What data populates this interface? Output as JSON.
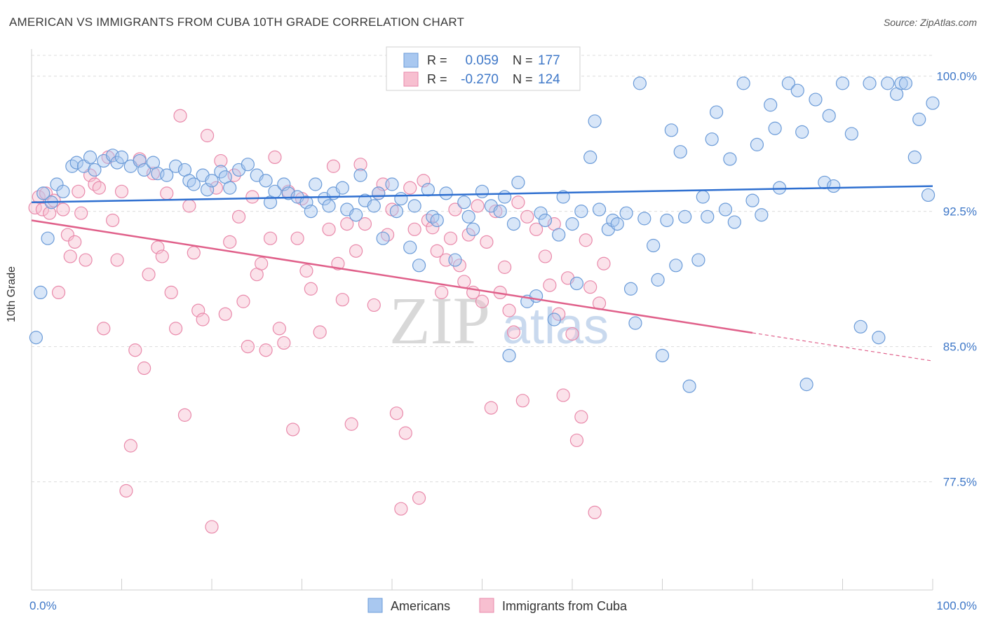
{
  "header": {
    "title": "AMERICAN VS IMMIGRANTS FROM CUBA 10TH GRADE CORRELATION CHART",
    "source": "Source: ZipAtlas.com"
  },
  "watermark": {
    "zip": "ZIP",
    "atlas": "atlas"
  },
  "colors": {
    "blue_fill": "#a9c8f0",
    "blue_stroke": "#6b9bd8",
    "blue_line": "#2e6fd0",
    "pink_fill": "#f7bfd0",
    "pink_stroke": "#e98aab",
    "pink_line": "#e0608a",
    "tick_text": "#3f78c8",
    "grid": "#dcdcdc"
  },
  "chart_data": {
    "type": "scatter",
    "title": "AMERICAN VS IMMIGRANTS FROM CUBA 10TH GRADE CORRELATION CHART",
    "ylabel": "10th Grade",
    "xlabel": "",
    "xlim": [
      0,
      100
    ],
    "ylim": [
      71.5,
      101.5
    ],
    "x_tick_labels": [
      "0.0%",
      "100.0%"
    ],
    "y_ticks": [
      77.5,
      85.0,
      92.5,
      100.0
    ],
    "y_tick_labels": [
      "77.5%",
      "85.0%",
      "92.5%",
      "100.0%"
    ],
    "grid": true,
    "legend_placement": "top-center",
    "stats": [
      {
        "r_label": "R =",
        "r_value": "0.059",
        "n_label": "N =",
        "n_value": "177"
      },
      {
        "r_label": "R =",
        "r_value": "-0.270",
        "n_label": "N =",
        "n_value": "124"
      }
    ],
    "series": [
      {
        "name": "Americans",
        "trend": {
          "x": [
            0,
            100
          ],
          "y": [
            93.0,
            93.9
          ]
        },
        "points": [
          [
            0.5,
            85.5
          ],
          [
            1.0,
            88.0
          ],
          [
            1.3,
            93.5
          ],
          [
            1.8,
            91.0
          ],
          [
            2.2,
            93.0
          ],
          [
            2.8,
            94.0
          ],
          [
            3.5,
            93.6
          ],
          [
            4.5,
            95.0
          ],
          [
            5.0,
            95.2
          ],
          [
            5.8,
            95.0
          ],
          [
            6.5,
            95.5
          ],
          [
            7.0,
            94.8
          ],
          [
            8.0,
            95.3
          ],
          [
            9.0,
            95.6
          ],
          [
            9.5,
            95.2
          ],
          [
            10.0,
            95.5
          ],
          [
            11.0,
            95.0
          ],
          [
            12.0,
            95.3
          ],
          [
            12.5,
            94.8
          ],
          [
            13.5,
            95.2
          ],
          [
            14.0,
            94.6
          ],
          [
            15.0,
            94.5
          ],
          [
            16.0,
            95.0
          ],
          [
            17.0,
            94.8
          ],
          [
            17.5,
            94.2
          ],
          [
            18.0,
            94.0
          ],
          [
            19.0,
            94.5
          ],
          [
            19.5,
            93.7
          ],
          [
            20.0,
            94.2
          ],
          [
            21.0,
            94.7
          ],
          [
            21.5,
            94.4
          ],
          [
            22.0,
            93.8
          ],
          [
            23.0,
            94.8
          ],
          [
            24.0,
            95.1
          ],
          [
            25.0,
            94.5
          ],
          [
            26.0,
            94.2
          ],
          [
            26.5,
            93.0
          ],
          [
            27.0,
            93.6
          ],
          [
            28.0,
            94.0
          ],
          [
            28.5,
            93.5
          ],
          [
            29.5,
            93.3
          ],
          [
            30.5,
            93.0
          ],
          [
            31.0,
            92.5
          ],
          [
            31.5,
            94.0
          ],
          [
            32.5,
            93.2
          ],
          [
            33.0,
            92.8
          ],
          [
            33.5,
            93.5
          ],
          [
            34.5,
            93.8
          ],
          [
            35.0,
            92.6
          ],
          [
            36.0,
            92.3
          ],
          [
            36.5,
            94.5
          ],
          [
            37.0,
            93.1
          ],
          [
            38.0,
            92.8
          ],
          [
            38.5,
            93.5
          ],
          [
            39.0,
            91.0
          ],
          [
            40.0,
            94.0
          ],
          [
            40.5,
            92.5
          ],
          [
            41.0,
            93.2
          ],
          [
            42.0,
            90.5
          ],
          [
            42.5,
            92.8
          ],
          [
            43.0,
            89.5
          ],
          [
            44.0,
            93.7
          ],
          [
            44.5,
            92.2
          ],
          [
            45.0,
            92.0
          ],
          [
            46.0,
            93.5
          ],
          [
            47.0,
            89.8
          ],
          [
            48.0,
            93.0
          ],
          [
            48.5,
            92.2
          ],
          [
            49.0,
            91.5
          ],
          [
            50.0,
            93.6
          ],
          [
            51.0,
            92.8
          ],
          [
            52.0,
            92.5
          ],
          [
            52.5,
            93.3
          ],
          [
            53.0,
            84.5
          ],
          [
            53.5,
            91.8
          ],
          [
            54.0,
            94.1
          ],
          [
            55.0,
            87.5
          ],
          [
            56.0,
            87.8
          ],
          [
            56.5,
            92.4
          ],
          [
            57.0,
            92.0
          ],
          [
            58.0,
            86.5
          ],
          [
            58.5,
            91.2
          ],
          [
            59.0,
            93.3
          ],
          [
            60.0,
            91.8
          ],
          [
            60.5,
            88.5
          ],
          [
            61.0,
            92.5
          ],
          [
            62.0,
            95.5
          ],
          [
            62.5,
            97.5
          ],
          [
            63.0,
            92.6
          ],
          [
            64.0,
            91.5
          ],
          [
            64.5,
            92.0
          ],
          [
            65.0,
            91.8
          ],
          [
            66.0,
            92.4
          ],
          [
            66.5,
            88.2
          ],
          [
            67.0,
            86.3
          ],
          [
            67.5,
            99.6
          ],
          [
            68.0,
            92.1
          ],
          [
            69.0,
            90.6
          ],
          [
            69.5,
            88.7
          ],
          [
            70.0,
            84.5
          ],
          [
            70.5,
            92.0
          ],
          [
            71.0,
            97.0
          ],
          [
            71.5,
            89.5
          ],
          [
            72.0,
            95.8
          ],
          [
            72.5,
            92.2
          ],
          [
            73.0,
            82.8
          ],
          [
            74.0,
            89.8
          ],
          [
            74.5,
            93.3
          ],
          [
            75.0,
            92.2
          ],
          [
            75.5,
            96.5
          ],
          [
            76.0,
            98.0
          ],
          [
            77.0,
            92.6
          ],
          [
            77.5,
            95.4
          ],
          [
            78.0,
            91.9
          ],
          [
            79.0,
            99.6
          ],
          [
            80.0,
            93.1
          ],
          [
            80.5,
            96.2
          ],
          [
            81.0,
            92.3
          ],
          [
            82.0,
            98.4
          ],
          [
            82.5,
            97.1
          ],
          [
            83.0,
            93.8
          ],
          [
            84.0,
            99.6
          ],
          [
            85.0,
            99.2
          ],
          [
            85.5,
            96.9
          ],
          [
            86.0,
            82.9
          ],
          [
            87.0,
            98.7
          ],
          [
            88.0,
            94.1
          ],
          [
            88.5,
            97.8
          ],
          [
            89.0,
            93.9
          ],
          [
            90.0,
            99.6
          ],
          [
            91.0,
            96.8
          ],
          [
            92.0,
            86.1
          ],
          [
            93.0,
            99.6
          ],
          [
            94.0,
            85.5
          ],
          [
            95.0,
            99.6
          ],
          [
            96.0,
            99.0
          ],
          [
            96.5,
            99.6
          ],
          [
            97.0,
            99.6
          ],
          [
            98.0,
            95.5
          ],
          [
            98.5,
            97.6
          ],
          [
            99.5,
            93.4
          ],
          [
            100.0,
            98.5
          ]
        ]
      },
      {
        "name": "Immigrants from Cuba",
        "trend": {
          "x": [
            0,
            100
          ],
          "y": [
            92.0,
            84.2
          ]
        },
        "points": [
          [
            0.4,
            92.7
          ],
          [
            0.8,
            93.3
          ],
          [
            1.2,
            92.6
          ],
          [
            1.6,
            93.5
          ],
          [
            2.0,
            92.4
          ],
          [
            2.5,
            93.1
          ],
          [
            3.0,
            88.0
          ],
          [
            3.5,
            92.6
          ],
          [
            4.0,
            91.2
          ],
          [
            4.3,
            90.0
          ],
          [
            4.8,
            90.8
          ],
          [
            5.2,
            93.6
          ],
          [
            5.5,
            92.4
          ],
          [
            6.0,
            89.8
          ],
          [
            6.5,
            94.5
          ],
          [
            7.0,
            94.0
          ],
          [
            7.5,
            93.8
          ],
          [
            8.0,
            86.0
          ],
          [
            8.5,
            95.5
          ],
          [
            9.0,
            92.0
          ],
          [
            9.5,
            89.8
          ],
          [
            10.0,
            93.6
          ],
          [
            10.5,
            77.0
          ],
          [
            11.0,
            79.5
          ],
          [
            11.5,
            84.8
          ],
          [
            12.0,
            95.4
          ],
          [
            12.5,
            83.8
          ],
          [
            13.0,
            89.0
          ],
          [
            13.5,
            94.6
          ],
          [
            14.0,
            90.5
          ],
          [
            14.5,
            90.0
          ],
          [
            15.0,
            93.5
          ],
          [
            15.5,
            88.0
          ],
          [
            16.0,
            86.0
          ],
          [
            16.5,
            97.8
          ],
          [
            17.0,
            81.2
          ],
          [
            17.5,
            92.8
          ],
          [
            18.0,
            90.2
          ],
          [
            18.5,
            87.0
          ],
          [
            19.0,
            86.5
          ],
          [
            19.5,
            96.7
          ],
          [
            20.0,
            75.0
          ],
          [
            20.5,
            93.8
          ],
          [
            21.0,
            95.3
          ],
          [
            21.5,
            86.8
          ],
          [
            22.0,
            90.8
          ],
          [
            22.5,
            94.5
          ],
          [
            23.0,
            92.2
          ],
          [
            23.5,
            87.5
          ],
          [
            24.0,
            85.0
          ],
          [
            24.5,
            93.3
          ],
          [
            25.0,
            89.0
          ],
          [
            25.5,
            89.6
          ],
          [
            26.0,
            84.8
          ],
          [
            26.5,
            91.0
          ],
          [
            27.0,
            95.5
          ],
          [
            27.5,
            86.0
          ],
          [
            28.0,
            85.2
          ],
          [
            28.5,
            93.6
          ],
          [
            29.0,
            80.4
          ],
          [
            29.5,
            91.0
          ],
          [
            30.0,
            93.2
          ],
          [
            30.5,
            89.2
          ],
          [
            31.0,
            88.2
          ],
          [
            32.0,
            85.8
          ],
          [
            33.0,
            91.5
          ],
          [
            33.5,
            95.0
          ],
          [
            34.0,
            89.6
          ],
          [
            34.5,
            87.6
          ],
          [
            35.0,
            91.8
          ],
          [
            35.5,
            80.7
          ],
          [
            36.0,
            90.3
          ],
          [
            36.5,
            95.1
          ],
          [
            37.0,
            91.8
          ],
          [
            38.0,
            87.3
          ],
          [
            38.5,
            93.5
          ],
          [
            39.0,
            94.0
          ],
          [
            39.5,
            91.2
          ],
          [
            40.0,
            92.6
          ],
          [
            40.5,
            81.3
          ],
          [
            41.0,
            76.0
          ],
          [
            41.5,
            80.2
          ],
          [
            42.0,
            93.8
          ],
          [
            42.5,
            91.5
          ],
          [
            43.0,
            76.6
          ],
          [
            43.5,
            94.2
          ],
          [
            44.0,
            92.0
          ],
          [
            44.5,
            91.6
          ],
          [
            45.0,
            90.3
          ],
          [
            45.5,
            88.0
          ],
          [
            46.0,
            89.8
          ],
          [
            46.5,
            91.0
          ],
          [
            47.0,
            92.6
          ],
          [
            47.5,
            89.5
          ],
          [
            48.0,
            88.6
          ],
          [
            48.5,
            91.2
          ],
          [
            49.0,
            88.0
          ],
          [
            49.5,
            92.8
          ],
          [
            50.0,
            87.5
          ],
          [
            50.5,
            90.8
          ],
          [
            51.0,
            81.6
          ],
          [
            51.5,
            92.5
          ],
          [
            52.0,
            88.0
          ],
          [
            52.5,
            89.4
          ],
          [
            53.0,
            87.0
          ],
          [
            53.5,
            85.8
          ],
          [
            54.0,
            93.0
          ],
          [
            54.5,
            82.0
          ],
          [
            55.0,
            92.2
          ],
          [
            56.0,
            91.5
          ],
          [
            57.0,
            90.0
          ],
          [
            57.5,
            88.4
          ],
          [
            58.0,
            91.8
          ],
          [
            58.5,
            86.8
          ],
          [
            59.0,
            82.3
          ],
          [
            59.5,
            88.8
          ],
          [
            60.0,
            85.7
          ],
          [
            60.5,
            79.8
          ],
          [
            61.0,
            81.1
          ],
          [
            61.5,
            90.9
          ],
          [
            62.0,
            88.3
          ],
          [
            62.5,
            75.8
          ],
          [
            63.0,
            87.4
          ],
          [
            63.5,
            89.6
          ]
        ]
      }
    ]
  }
}
